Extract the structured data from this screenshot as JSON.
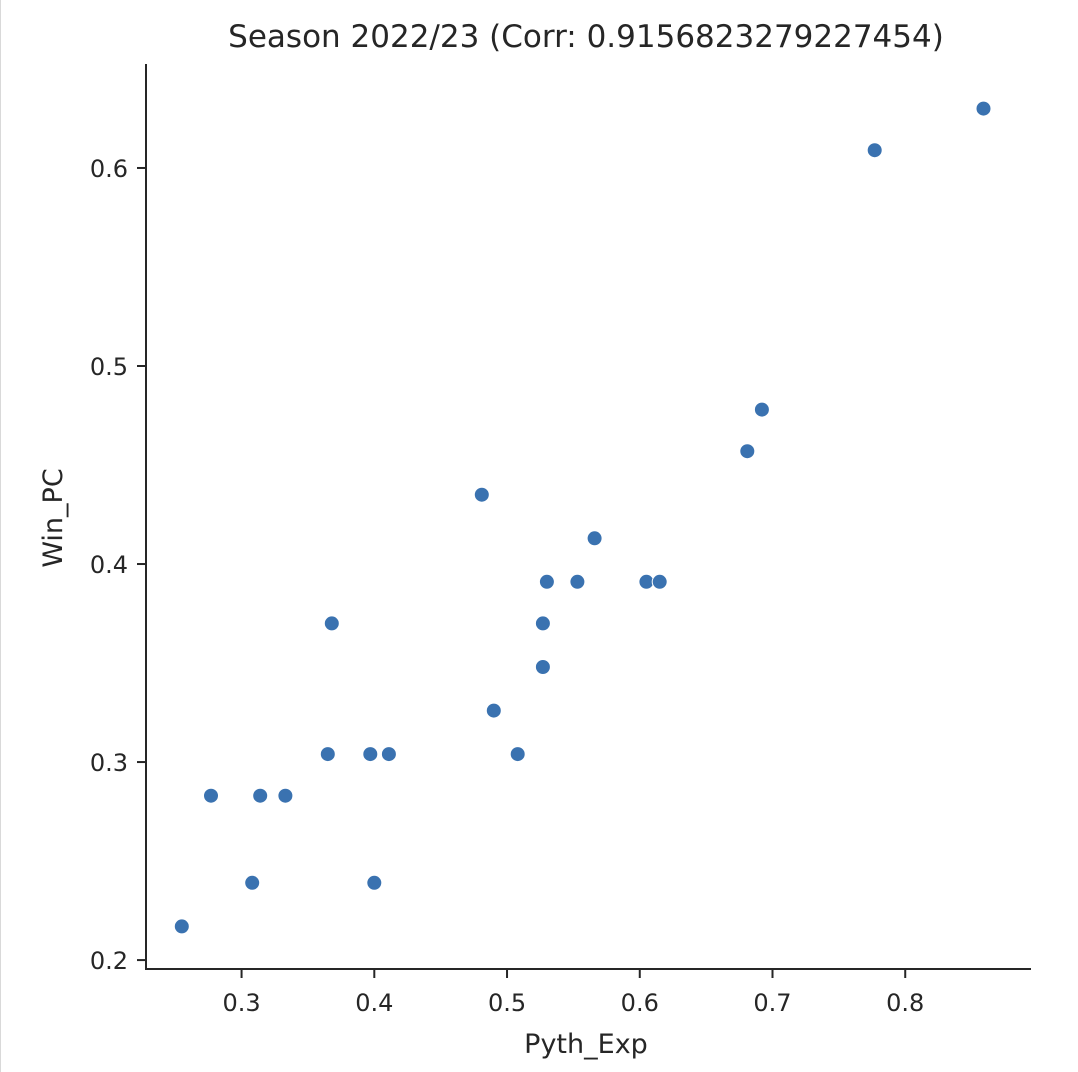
{
  "chart_data": {
    "type": "scatter",
    "title": "Season 2022/23 (Corr: 0.9156823279227454)",
    "xlabel": "Pyth_Exp",
    "ylabel": "Win_PC",
    "xlim": [
      0.228,
      0.894
    ],
    "ylim": [
      0.196,
      0.652
    ],
    "xticks": [
      0.3,
      0.4,
      0.5,
      0.6,
      0.7,
      0.8
    ],
    "xtick_labels": [
      "0.3",
      "0.4",
      "0.5",
      "0.6",
      "0.7",
      "0.8"
    ],
    "yticks": [
      0.2,
      0.3,
      0.4,
      0.5,
      0.6
    ],
    "ytick_labels": [
      "0.2",
      "0.3",
      "0.4",
      "0.5",
      "0.6"
    ],
    "grid": false,
    "marker_color": "#3a72b0",
    "points": [
      {
        "x": 0.255,
        "y": 0.217
      },
      {
        "x": 0.277,
        "y": 0.283
      },
      {
        "x": 0.308,
        "y": 0.239
      },
      {
        "x": 0.314,
        "y": 0.283
      },
      {
        "x": 0.333,
        "y": 0.283
      },
      {
        "x": 0.365,
        "y": 0.304
      },
      {
        "x": 0.368,
        "y": 0.37
      },
      {
        "x": 0.397,
        "y": 0.304
      },
      {
        "x": 0.4,
        "y": 0.239
      },
      {
        "x": 0.411,
        "y": 0.304
      },
      {
        "x": 0.481,
        "y": 0.435
      },
      {
        "x": 0.49,
        "y": 0.326
      },
      {
        "x": 0.508,
        "y": 0.304
      },
      {
        "x": 0.527,
        "y": 0.348
      },
      {
        "x": 0.527,
        "y": 0.37
      },
      {
        "x": 0.53,
        "y": 0.391
      },
      {
        "x": 0.553,
        "y": 0.391
      },
      {
        "x": 0.566,
        "y": 0.413
      },
      {
        "x": 0.605,
        "y": 0.391
      },
      {
        "x": 0.615,
        "y": 0.391
      },
      {
        "x": 0.681,
        "y": 0.457
      },
      {
        "x": 0.692,
        "y": 0.478
      },
      {
        "x": 0.777,
        "y": 0.609
      },
      {
        "x": 0.859,
        "y": 0.63
      }
    ]
  }
}
